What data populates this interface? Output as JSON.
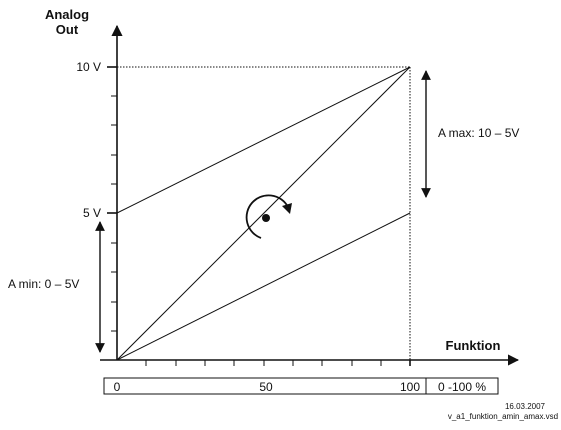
{
  "axes": {
    "y_title_line1": "Analog",
    "y_title_line2": "Out",
    "x_title": "Funktion",
    "y_tick_10v": "10 V",
    "y_tick_5v": "5 V"
  },
  "annotations": {
    "a_max": "A max: 10 – 5V",
    "a_min": "A min: 0 – 5V"
  },
  "scale_bar": {
    "label_0": "0",
    "label_50": "50",
    "label_100": "100",
    "unit": "0 -100 %"
  },
  "footer": {
    "date": "16.03.2007",
    "filename": "v_a1_funktion_amin_amax.vsd"
  },
  "icons": {
    "rotation": "rotate-clockwise-icon"
  },
  "colors": {
    "line": "#111111",
    "background": "#ffffff"
  }
}
